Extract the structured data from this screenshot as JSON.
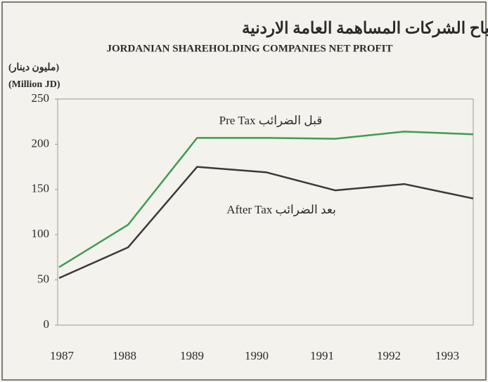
{
  "chart_data": {
    "type": "line",
    "title": "صافي ارباح الشركات المساهمة العامة الاردنية",
    "subtitle": "JORDANIAN SHAREHOLDING COMPANIES NET PROFIT",
    "y_label_arabic": "(مليون دينار)",
    "y_label": "(Million JD)",
    "categories": [
      "1987",
      "1988",
      "1989",
      "1990",
      "1991",
      "1992",
      "1993"
    ],
    "series": [
      {
        "name": "Pre Tax قبل الضرائب",
        "color": "#3f9b4f",
        "values": [
          64,
          111,
          207,
          207,
          206,
          214,
          211
        ]
      },
      {
        "name": "After Tax بعد الضرائب",
        "color": "#3a3a3a",
        "values": [
          52,
          86,
          175,
          169,
          149,
          156,
          140
        ]
      }
    ],
    "ylim": [
      0,
      250
    ],
    "yticks": [
      0,
      50,
      100,
      150,
      200,
      250
    ],
    "grid": false
  }
}
